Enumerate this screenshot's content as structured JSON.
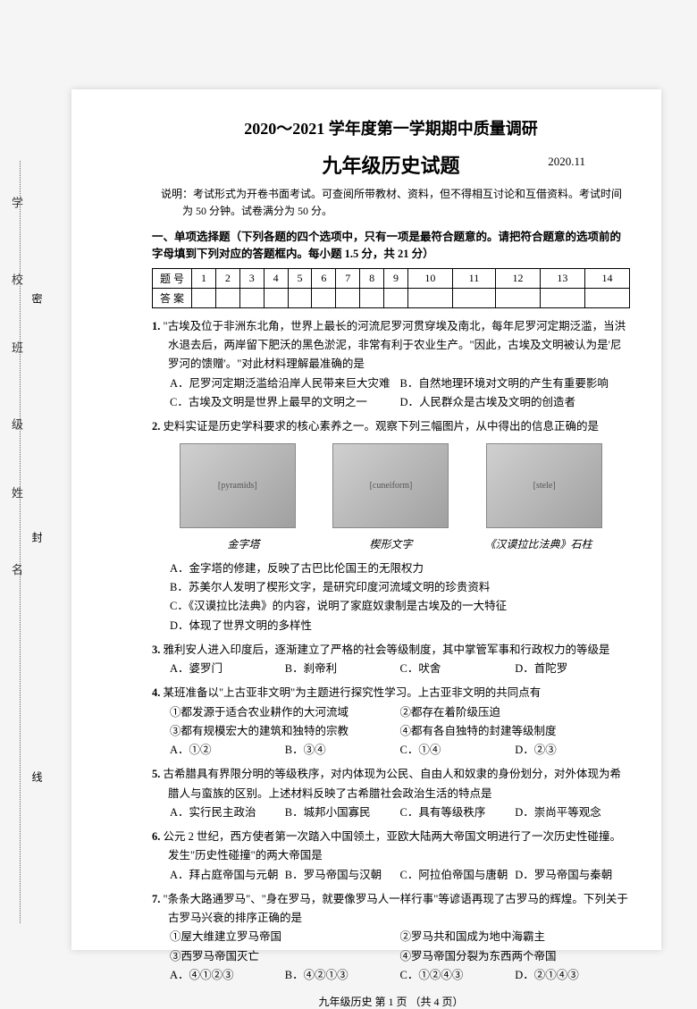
{
  "header": {
    "title_main": "2020～2021 学年度第一学期期中质量调研",
    "title_sub": "九年级历史试题",
    "date": "2020.11",
    "instructions": "说明：考试形式为开卷书面考试。可查阅所带教材、资料，但不得相互讨论和互借资料。考试时间为 50 分钟。试卷满分为 50 分。"
  },
  "section1": {
    "header": "一、单项选择题（下列各题的四个选项中，只有一项是最符合题意的。请把符合题意的选项前的字母填到下列对应的答题框内。每小题 1.5 分，共 21 分）",
    "table_labels": [
      "题 号",
      "答 案"
    ],
    "cols": [
      "1",
      "2",
      "3",
      "4",
      "5",
      "6",
      "7",
      "8",
      "9",
      "10",
      "11",
      "12",
      "13",
      "14"
    ]
  },
  "questions": [
    {
      "num": "1.",
      "text": "\"古埃及位于非洲东北角，世界上最长的河流尼罗河贯穿埃及南北，每年尼罗河定期泛滥，当洪水退去后，两岸留下肥沃的黑色淤泥，非常有利于农业生产。\"因此，古埃及文明被认为是'尼罗河的馈赠'。\"对此材料理解最准确的是",
      "options": [
        "A．尼罗河定期泛滥给沿岸人民带来巨大灾难",
        "B．自然地理环境对文明的产生有重要影响",
        "C．古埃及文明是世界上最早的文明之一",
        "D．人民群众是古埃及文明的创造者"
      ],
      "layout": "two"
    },
    {
      "num": "2.",
      "text": "史料实证是历史学科要求的核心素养之一。观察下列三幅图片，从中得出的信息正确的是",
      "images": [
        {
          "caption": "金字塔",
          "alt": "pyramids"
        },
        {
          "caption": "楔形文字",
          "alt": "cuneiform"
        },
        {
          "caption": "《汉谟拉比法典》石柱",
          "alt": "stele"
        }
      ],
      "options": [
        "A．金字塔的修建，反映了古巴比伦国王的无限权力",
        "B．苏美尔人发明了楔形文字，是研究印度河流域文明的珍贵资料",
        "C．《汉谟拉比法典》的内容，说明了家庭奴隶制是古埃及的一大特征",
        "D．体现了世界文明的多样性"
      ],
      "layout": "one"
    },
    {
      "num": "3.",
      "text": "雅利安人进入印度后，逐渐建立了严格的社会等级制度，其中掌管军事和行政权力的等级是",
      "options": [
        "A．婆罗门",
        "B．刹帝利",
        "C．吠舍",
        "D．首陀罗"
      ],
      "layout": "four"
    },
    {
      "num": "4.",
      "text": "某班准备以\"上古亚非文明\"为主题进行探究性学习。上古亚非文明的共同点有",
      "subitems": [
        "①都发源于适合农业耕作的大河流域",
        "②都存在着阶级压迫",
        "③都有规模宏大的建筑和独特的宗教",
        "④都有各自独特的封建等级制度"
      ],
      "options": [
        "A．①②",
        "B．③④",
        "C．①④",
        "D．②③"
      ],
      "layout": "four"
    },
    {
      "num": "5.",
      "text": "古希腊具有界限分明的等级秩序，对内体现为公民、自由人和奴隶的身份划分，对外体现为希腊人与蛮族的区别。上述材料反映了古希腊社会政治生活的特点是",
      "options": [
        "A．实行民主政治",
        "B．城邦小国寡民",
        "C．具有等级秩序",
        "D．崇尚平等观念"
      ],
      "layout": "four"
    },
    {
      "num": "6.",
      "text": "公元 2 世纪，西方使者第一次踏入中国领土，亚欧大陆两大帝国文明进行了一次历史性碰撞。发生\"历史性碰撞\"的两大帝国是",
      "options": [
        "A．拜占庭帝国与元朝",
        "B．罗马帝国与汉朝",
        "C．阿拉伯帝国与唐朝",
        "D．罗马帝国与秦朝"
      ],
      "layout": "four"
    },
    {
      "num": "7.",
      "text": "\"条条大路通罗马\"、\"身在罗马，就要像罗马人一样行事\"等谚语再现了古罗马的辉煌。下列关于古罗马兴衰的排序正确的是",
      "subitems": [
        "①屋大维建立罗马帝国",
        "②罗马共和国成为地中海霸主",
        "③西罗马帝国灭亡",
        "④罗马帝国分裂为东西两个帝国"
      ],
      "options": [
        "A．④①②③",
        "B．④②①③",
        "C．①②④③",
        "D．②①④③"
      ],
      "layout": "four"
    }
  ],
  "footer": "九年级历史  第 1 页  （共 4 页）",
  "side": {
    "labels": [
      "学　校",
      "班　级",
      "姓　名"
    ],
    "seal_marks": [
      "密",
      "封",
      "线"
    ]
  }
}
